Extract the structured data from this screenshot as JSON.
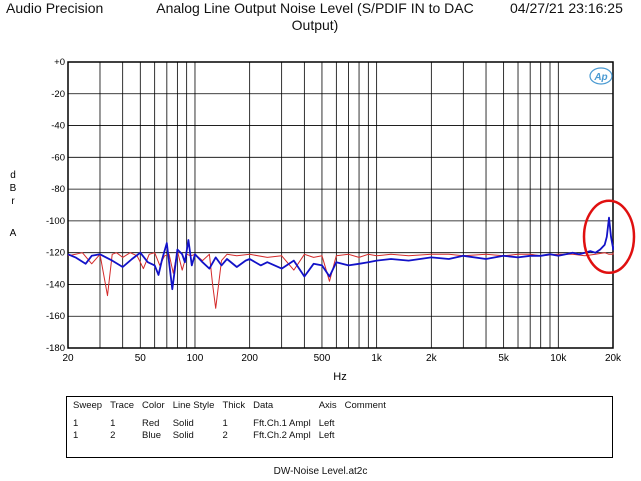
{
  "header": {
    "brand": "Audio Precision",
    "timestamp": "04/27/21 23:16:25"
  },
  "logo_text": "Ap",
  "legend_table": {
    "columns": [
      "Sweep",
      "Trace",
      "Color",
      "Line Style",
      "Thick",
      "Data",
      "Axis",
      "Comment"
    ],
    "rows": [
      [
        "1",
        "1",
        "Red",
        "Solid",
        "1",
        "Fft.Ch.1 Ampl",
        "Left",
        ""
      ],
      [
        "1",
        "2",
        "Blue",
        "Solid",
        "2",
        "Fft.Ch.2 Ampl",
        "Left",
        ""
      ]
    ]
  },
  "filename": "DW-Noise Level.at2c",
  "colors": {
    "red_trace": "#d42a2a",
    "blue_trace": "#1212c8",
    "annotation": "#e01010",
    "grid": "#000000"
  },
  "chart_data": {
    "type": "line",
    "title": "Analog Line Output Noise Level (S/PDIF IN to DAC Output)",
    "xlabel": "Hz",
    "ylabel": "dBr A",
    "x_scale": "log",
    "xlim": [
      20,
      20000
    ],
    "ylim": [
      -180,
      0
    ],
    "x_tick_labels": [
      "20",
      "50",
      "100",
      "200",
      "500",
      "1k",
      "2k",
      "5k",
      "10k",
      "20k"
    ],
    "x_tick_values": [
      20,
      50,
      100,
      200,
      500,
      1000,
      2000,
      5000,
      10000,
      20000
    ],
    "y_tick_labels": [
      "+0",
      "-20",
      "-40",
      "-60",
      "-80",
      "-100",
      "-120",
      "-140",
      "-160",
      "-180"
    ],
    "y_tick_values": [
      0,
      -20,
      -40,
      -60,
      -80,
      -100,
      -120,
      -140,
      -160,
      -180
    ],
    "grid": true,
    "annotation": {
      "type": "circle",
      "color": "red",
      "x": 19000,
      "y": -110
    },
    "series": [
      {
        "color": "red",
        "x": [
          20,
          22,
          24,
          27,
          30,
          33,
          35,
          37,
          40,
          44,
          48,
          52,
          56,
          60,
          64,
          68,
          72,
          76,
          80,
          85,
          90,
          95,
          100,
          110,
          120,
          125,
          130,
          140,
          150,
          170,
          200,
          250,
          300,
          350,
          400,
          450,
          500,
          550,
          600,
          700,
          800,
          900,
          1000,
          1200,
          1500,
          2000,
          2500,
          3000,
          4000,
          5000,
          6000,
          7000,
          8000,
          10000,
          12000,
          14000,
          16000,
          18000,
          19000,
          20000,
          21000,
          22000
        ],
        "y": [
          -122,
          -121,
          -120,
          -127,
          -121,
          -147,
          -121,
          -120,
          -123,
          -120,
          -122,
          -130,
          -121,
          -120,
          -128,
          -122,
          -121,
          -133,
          -119,
          -131,
          -121,
          -122,
          -121,
          -125,
          -121,
          -140,
          -155,
          -125,
          -121,
          -122,
          -121,
          -123,
          -122,
          -131,
          -121,
          -123,
          -122,
          -138,
          -122,
          -121,
          -123,
          -121,
          -122,
          -121,
          -122,
          -121,
          -121,
          -122,
          -121,
          -122,
          -121,
          -121,
          -122,
          -121,
          -121,
          -122,
          -121,
          -120,
          -121,
          -121,
          -120,
          -121
        ]
      },
      {
        "color": "blue",
        "x": [
          20,
          22,
          25,
          27,
          30,
          35,
          40,
          45,
          50,
          55,
          60,
          63,
          66,
          70,
          75,
          80,
          85,
          88,
          92,
          96,
          100,
          110,
          120,
          130,
          140,
          150,
          170,
          190,
          200,
          230,
          250,
          300,
          350,
          400,
          450,
          500,
          550,
          600,
          700,
          800,
          900,
          1000,
          1200,
          1500,
          2000,
          2500,
          3000,
          4000,
          5000,
          6000,
          7000,
          8000,
          9000,
          10000,
          11000,
          12000,
          13000,
          14000,
          15000,
          16000,
          17000,
          18000,
          18500,
          19000,
          19500,
          20000,
          21000,
          22000
        ],
        "y": [
          -121,
          -123,
          -127,
          -122,
          -121,
          -125,
          -129,
          -124,
          -120,
          -126,
          -128,
          -134,
          -124,
          -114,
          -143,
          -118,
          -121,
          -126,
          -112,
          -128,
          -121,
          -126,
          -130,
          -123,
          -128,
          -124,
          -129,
          -125,
          -124,
          -128,
          -126,
          -130,
          -125,
          -135,
          -127,
          -128,
          -135,
          -126,
          -128,
          -127,
          -126,
          -125,
          -124,
          -125,
          -123,
          -124,
          -122,
          -124,
          -122,
          -123,
          -122,
          -122,
          -121,
          -122,
          -121,
          -120,
          -121,
          -120,
          -119,
          -120,
          -118,
          -115,
          -110,
          -98,
          -110,
          -117,
          -118,
          -116
        ]
      }
    ]
  }
}
